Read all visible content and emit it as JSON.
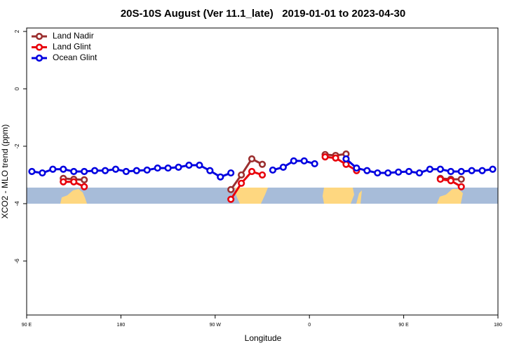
{
  "chart_data": {
    "type": "line",
    "title": "20S-10S August (Ver 11.1_late)   2019-01-01 to 2023-04-30",
    "x_label": "Longitude",
    "y_label": "XCO2 - MLO trend (ppm)",
    "xlim": [
      90,
      540
    ],
    "xticks": [
      {
        "value": 90,
        "label": "90 E"
      },
      180,
      {
        "value": 270,
        "label": "90 W"
      },
      {
        "value": 360,
        "label": "0"
      },
      {
        "value": 450,
        "label": "90 E"
      },
      {
        "value": 540,
        "label": "180"
      }
    ],
    "ylim": [
      -7.88,
      2.12
    ],
    "yticks": [
      2,
      0,
      -2,
      -4,
      -6
    ],
    "legend": "top-left",
    "series": [
      {
        "name": "Land Nadir",
        "color": "#9b2f2f",
        "x": [
          125,
          135,
          145,
          215,
          285,
          295,
          305,
          315,
          345,
          375,
          385,
          395,
          440,
          485,
          495,
          505
        ],
        "values": [
          -3.12,
          -3.15,
          -3.17,
          null,
          -3.51,
          -3.0,
          -2.44,
          -2.63,
          null,
          -2.29,
          -2.32,
          -2.27,
          null,
          -3.12,
          -3.15,
          -3.15
        ]
      },
      {
        "name": "Land Glint",
        "color": "#e8000b",
        "x": [
          125,
          135,
          145,
          215,
          285,
          295,
          305,
          315,
          345,
          375,
          385,
          395,
          405,
          440,
          485,
          495,
          505
        ],
        "values": [
          -3.24,
          -3.24,
          -3.41,
          null,
          -3.85,
          -3.29,
          -2.88,
          -3.0,
          null,
          -2.37,
          -2.41,
          -2.63,
          -2.85,
          null,
          -3.15,
          -3.2,
          -3.41
        ]
      },
      {
        "name": "Ocean Glint",
        "color": "#0000e0",
        "x": [
          95,
          105,
          115,
          125,
          135,
          145,
          155,
          165,
          175,
          185,
          195,
          205,
          215,
          225,
          235,
          245,
          255,
          265,
          275,
          285,
          305,
          325,
          335,
          345,
          355,
          365,
          380,
          395,
          405,
          415,
          425,
          435,
          445,
          455,
          465,
          475,
          485,
          495,
          505,
          515,
          525,
          535
        ],
        "values": [
          -2.88,
          -2.93,
          -2.8,
          -2.8,
          -2.88,
          -2.88,
          -2.85,
          -2.85,
          -2.8,
          -2.88,
          -2.85,
          -2.83,
          -2.76,
          -2.76,
          -2.73,
          -2.66,
          -2.66,
          -2.85,
          -3.07,
          -2.93,
          null,
          -2.83,
          -2.73,
          -2.51,
          -2.51,
          -2.61,
          null,
          -2.44,
          -2.76,
          -2.85,
          -2.93,
          -2.93,
          -2.9,
          -2.88,
          -2.93,
          -2.8,
          -2.8,
          -2.88,
          -2.88,
          -2.85,
          -2.85,
          -2.8
        ]
      }
    ]
  }
}
